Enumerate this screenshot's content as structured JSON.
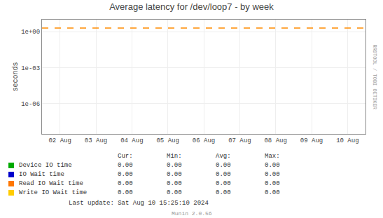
{
  "chart_data": {
    "type": "line",
    "title": "Average latency for /dev/loop7 - by week",
    "y_label": "seconds",
    "categories": [
      "02 Aug",
      "03 Aug",
      "04 Aug",
      "05 Aug",
      "06 Aug",
      "07 Aug",
      "08 Aug",
      "09 Aug",
      "10 Aug"
    ],
    "series": [
      {
        "name": "Device IO time",
        "color": "#00aa00",
        "values": [
          null,
          null,
          null,
          null,
          null,
          null,
          null,
          null,
          null
        ],
        "stats": [
          {
            "value": 0,
            "label": "0.00"
          },
          {
            "value": 0,
            "label": "0.00"
          },
          {
            "value": 0,
            "label": "0.00"
          },
          {
            "value": 0,
            "label": "0.00"
          }
        ]
      },
      {
        "name": "IO Wait time",
        "color": "#0000cc",
        "values": [
          null,
          null,
          null,
          null,
          null,
          null,
          null,
          null,
          null
        ],
        "stats": [
          {
            "value": 0,
            "label": "0.00"
          },
          {
            "value": 0,
            "label": "0.00"
          },
          {
            "value": 0,
            "label": "0.00"
          },
          {
            "value": 0,
            "label": "0.00"
          }
        ]
      },
      {
        "name": "Read IO Wait time",
        "color": "#ff7700",
        "values": [
          null,
          null,
          null,
          null,
          null,
          null,
          null,
          null,
          null
        ],
        "stats": [
          {
            "value": 0,
            "label": "0.00"
          },
          {
            "value": 0,
            "label": "0.00"
          },
          {
            "value": 0,
            "label": "0.00"
          },
          {
            "value": 0,
            "label": "0.00"
          }
        ]
      },
      {
        "name": "Write IO Wait time",
        "color": "#ffcc00",
        "values": [
          null,
          null,
          null,
          null,
          null,
          null,
          null,
          null,
          null
        ],
        "stats": [
          {
            "value": 0,
            "label": "0.00"
          },
          {
            "value": 0,
            "label": "0.00"
          },
          {
            "value": 0,
            "label": "0.00"
          },
          {
            "value": 0,
            "label": "0.00"
          }
        ]
      }
    ],
    "stats_headers": [
      "Cur:",
      "Min:",
      "Avg:",
      "Max:"
    ],
    "reference_lines": [
      {
        "y": 2.0,
        "color": "#ff8c00",
        "line_style": "dashed"
      }
    ],
    "log": "y",
    "ylim": [
      3e-09,
      10.0
    ],
    "yticks": [
      {
        "value": 1e-06,
        "label": "1e-06"
      },
      {
        "value": 0.001,
        "label": "1e-03"
      },
      {
        "value": 1,
        "label": "1e+00"
      }
    ],
    "grid": true,
    "annotations": [
      {
        "text": "Last update: Sat Aug 10 15:25:10 2024"
      },
      {
        "text": "Munin 2.0.56"
      },
      {
        "text": "RRDTOOL / TOBI OETIKER"
      }
    ]
  }
}
